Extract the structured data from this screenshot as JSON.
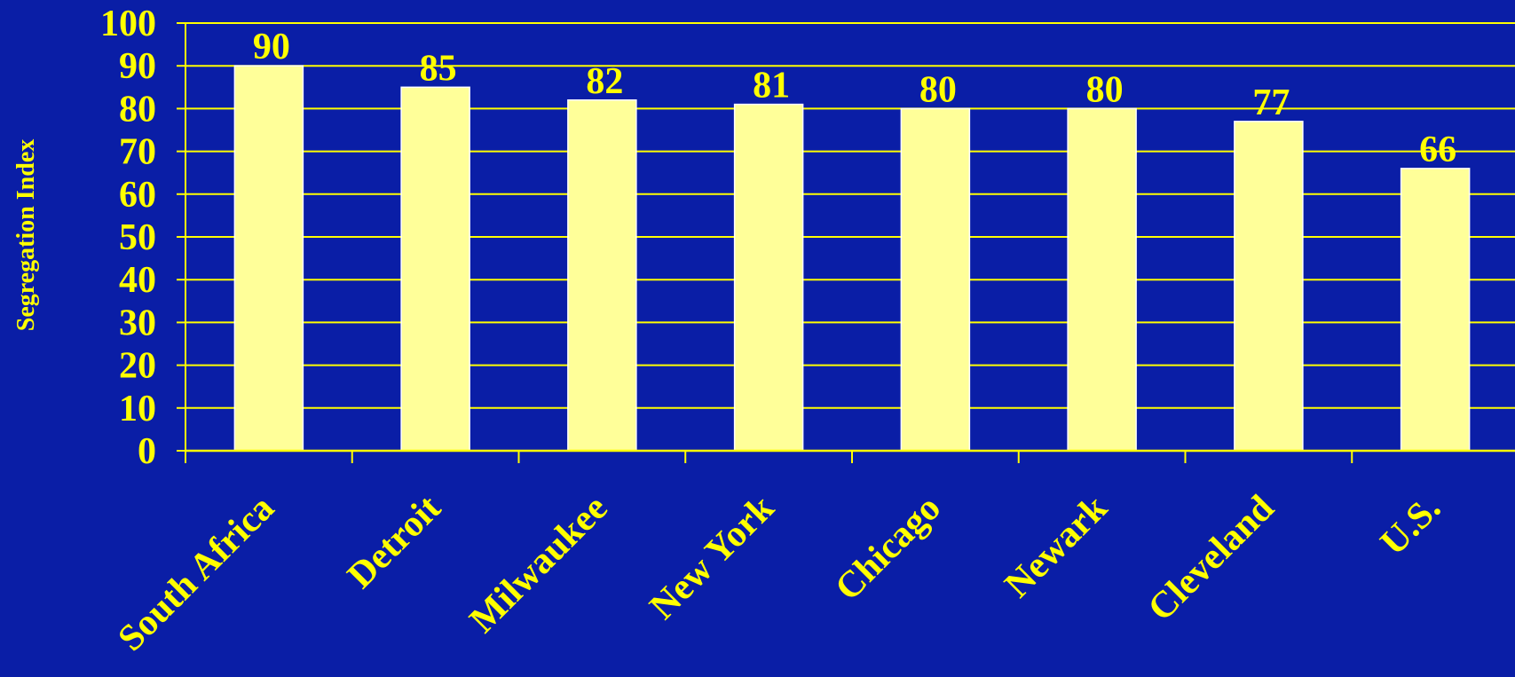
{
  "chart_data": {
    "type": "bar",
    "title": "",
    "xlabel": "",
    "ylabel": "Segregation Index",
    "categories": [
      "South Africa",
      "Detroit",
      "Milwaukee",
      "New York",
      "Chicago",
      "Newark",
      "Cleveland",
      "U.S."
    ],
    "values": [
      90,
      85,
      82,
      81,
      80,
      80,
      77,
      66
    ],
    "ylim": [
      0,
      100
    ],
    "yticks": [
      "0",
      "10",
      "20",
      "30",
      "40",
      "50",
      "60",
      "70",
      "80",
      "90",
      "100"
    ],
    "data_labels": [
      "90",
      "85",
      "82",
      "81",
      "80",
      "80",
      "77",
      "66"
    ],
    "grid": true,
    "legend": "none",
    "colors": {
      "background": "#0a1ea6",
      "bar": "#ffff99",
      "text": "#ffff00",
      "grid": "#ffff00"
    }
  }
}
